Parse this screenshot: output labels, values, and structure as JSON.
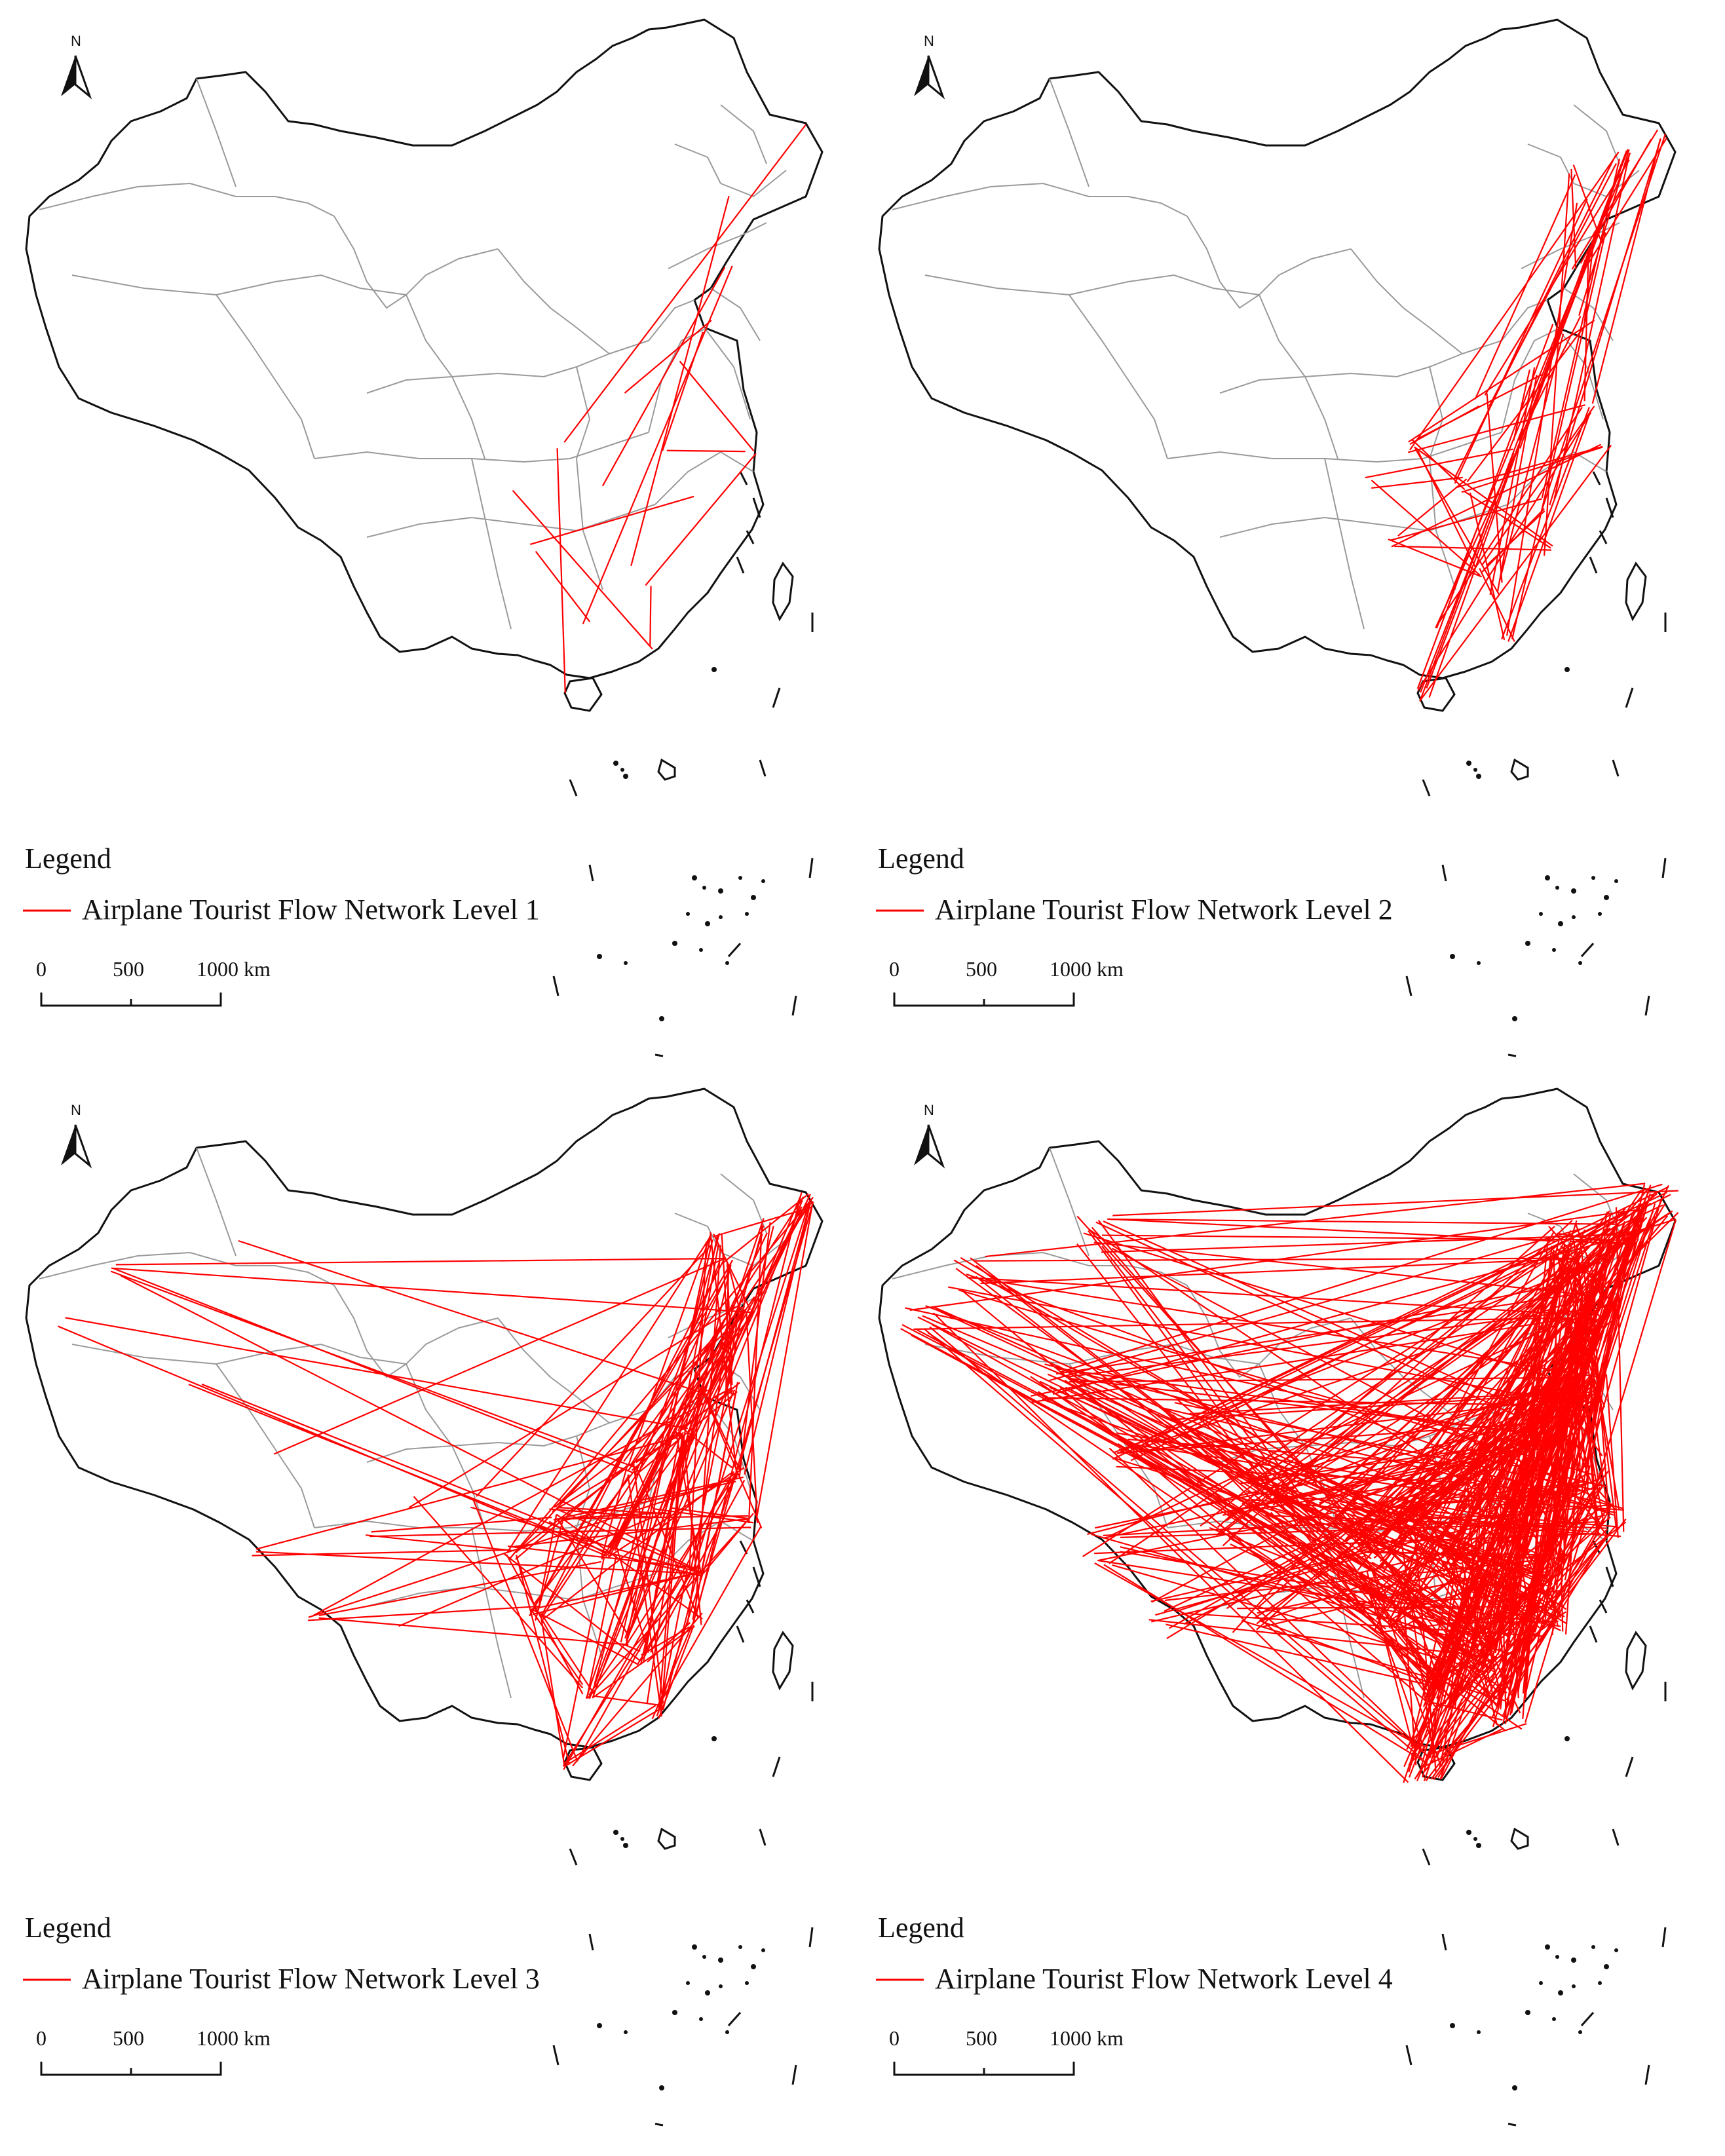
{
  "panels": [
    {
      "legend_title": "Legend",
      "legend_label": "Airplane Tourist Flow Network Level 1",
      "north": "N",
      "scale": [
        "0",
        "500",
        "1000 km"
      ],
      "density": 1
    },
    {
      "legend_title": "Legend",
      "legend_label": "Airplane Tourist Flow Network Level 2",
      "north": "N",
      "scale": [
        "0",
        "500",
        "1000 km"
      ],
      "density": 2
    },
    {
      "legend_title": "Legend",
      "legend_label": "Airplane Tourist Flow Network Level 3",
      "north": "N",
      "scale": [
        "0",
        "500",
        "1000 km"
      ],
      "density": 3
    },
    {
      "legend_title": "Legend",
      "legend_label": "Airplane Tourist Flow Network Level 4",
      "north": "N",
      "scale": [
        "0",
        "500",
        "1000 km"
      ],
      "density": 4
    }
  ],
  "colors": {
    "flow": "#ff0000",
    "border": "#111111",
    "province": "#9a9a9a"
  }
}
